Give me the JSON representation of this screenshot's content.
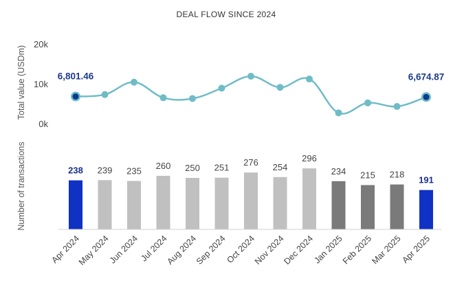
{
  "chart_data": [
    {
      "type": "line",
      "title": "DEAL FLOW SINCE 2024",
      "ylabel": "Total value (USDm)",
      "ylim": [
        0,
        20000
      ],
      "yticks": [
        "0k",
        "10k",
        "20k"
      ],
      "x": [
        "Apr 2024",
        "May 2024",
        "Jun 2024",
        "Jul 2024",
        "Aug 2024",
        "Sep 2024",
        "Oct 2024",
        "Nov 2024",
        "Dec 2024",
        "Jan 2025",
        "Feb 2025",
        "Mar 2025",
        "Apr 2025"
      ],
      "series": [
        {
          "values": [
            6801.46,
            7300,
            10400,
            6500,
            6300,
            8900,
            11900,
            9100,
            11200,
            2700,
            5200,
            4300,
            6674.87
          ],
          "color": "#6fbcc6"
        }
      ],
      "labels": [
        {
          "index": 0,
          "text": "6,801.46"
        },
        {
          "index": 12,
          "text": "6,674.87"
        }
      ],
      "highlight_color": "#0b3a8f"
    },
    {
      "type": "bar",
      "ylabel": "Number of transactions",
      "categories": [
        "Apr 2024",
        "May 2024",
        "Jun 2024",
        "Jul 2024",
        "Aug 2024",
        "Sep 2024",
        "Oct 2024",
        "Nov 2024",
        "Dec 2024",
        "Jan 2025",
        "Feb 2025",
        "Mar 2025",
        "Apr 2025"
      ],
      "values": [
        238,
        239,
        235,
        260,
        250,
        251,
        276,
        254,
        296,
        234,
        215,
        218,
        191
      ],
      "value_labels": [
        "238",
        "239",
        "235",
        "260",
        "250",
        "251",
        "276",
        "254",
        "296",
        "234",
        "215",
        "218",
        "191"
      ],
      "colors": [
        "#0f31c4",
        "#c0c0c0",
        "#c0c0c0",
        "#c0c0c0",
        "#c0c0c0",
        "#c0c0c0",
        "#c0c0c0",
        "#c0c0c0",
        "#c0c0c0",
        "#7a7a7a",
        "#7a7a7a",
        "#7a7a7a",
        "#0f31c4"
      ],
      "highlight_label_color": "#1a2f8a"
    }
  ]
}
